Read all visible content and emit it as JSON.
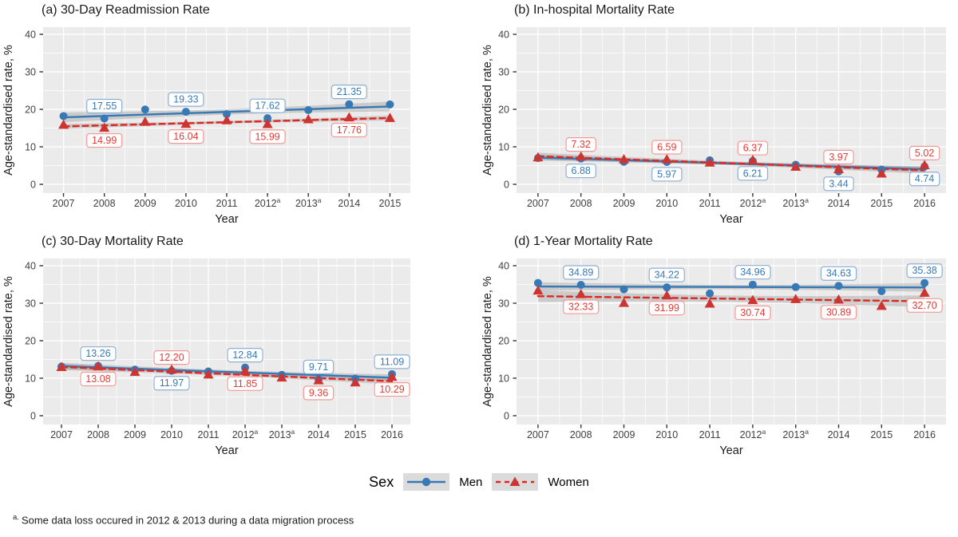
{
  "figure": {
    "xlabel": "Year",
    "ylabel": "Age-standardised rate, %",
    "legend": {
      "title": "Sex",
      "items": [
        {
          "key": "men",
          "label": "Men",
          "marker": "circle",
          "line": "solid"
        },
        {
          "key": "women",
          "label": "Women",
          "marker": "triangle",
          "line": "dashed"
        }
      ]
    },
    "footnote": {
      "sup": "a.",
      "text": "Some data loss occured in 2012 & 2013 during a data migration process"
    }
  },
  "colors": {
    "men": "#3779B5",
    "women": "#E0261F",
    "women_marker": "#CC3531",
    "men_label_text": "#3779B5",
    "women_label_text": "#E23B35",
    "men_label_border": "#8FAFD1",
    "women_label_border": "#F09B97",
    "panel_bg": "#EBEBEB",
    "grid": "#FFFFFF",
    "band": "#7F7F7F",
    "band_opacity": "0.30",
    "tick_text": "#404040",
    "axis_title": "#1a1a1a",
    "tick_mark": "#333333",
    "legend_key_bg": "#DBDBDB",
    "label_box_bg": "#FFFFFF"
  },
  "chart_data": [
    {
      "id": "a",
      "type": "scatter",
      "title": "(a) 30-Day Readmission Rate",
      "xlabel": "Year",
      "ylabel": "Age-standardised rate, %",
      "ylim": [
        0,
        40
      ],
      "yticks": [
        0,
        10,
        20,
        30,
        40
      ],
      "x": [
        2007,
        2008,
        2009,
        2010,
        2011,
        2012,
        2013,
        2014,
        2015
      ],
      "x_superscript_years": [
        2012,
        2013
      ],
      "trend": "linear-with-95ci-band",
      "series": [
        {
          "name": "Men",
          "key": "men",
          "values": [
            18.2,
            17.55,
            19.95,
            19.33,
            18.7,
            17.62,
            19.8,
            21.35,
            21.3
          ]
        },
        {
          "name": "Women",
          "key": "women",
          "values": [
            15.8,
            14.99,
            16.6,
            16.04,
            17.0,
            15.99,
            17.25,
            17.76,
            17.6
          ]
        }
      ],
      "labels": [
        {
          "year": 2008,
          "series": "men",
          "text": "17.55",
          "placement": "above"
        },
        {
          "year": 2010,
          "series": "men",
          "text": "19.33",
          "placement": "above"
        },
        {
          "year": 2012,
          "series": "men",
          "text": "17.62",
          "placement": "above"
        },
        {
          "year": 2014,
          "series": "men",
          "text": "21.35",
          "placement": "above"
        },
        {
          "year": 2008,
          "series": "women",
          "text": "14.99",
          "placement": "below"
        },
        {
          "year": 2010,
          "series": "women",
          "text": "16.04",
          "placement": "below"
        },
        {
          "year": 2012,
          "series": "women",
          "text": "15.99",
          "placement": "below"
        },
        {
          "year": 2014,
          "series": "women",
          "text": "17.76",
          "placement": "below"
        }
      ]
    },
    {
      "id": "b",
      "type": "scatter",
      "title": "(b) In-hospital Mortality Rate",
      "xlabel": "Year",
      "ylabel": "Age-standardised rate, %",
      "ylim": [
        0,
        40
      ],
      "yticks": [
        0,
        10,
        20,
        30,
        40
      ],
      "x": [
        2007,
        2008,
        2009,
        2010,
        2011,
        2012,
        2013,
        2014,
        2015,
        2016
      ],
      "x_superscript_years": [
        2012,
        2013
      ],
      "trend": "linear-with-95ci-band",
      "series": [
        {
          "name": "Men",
          "key": "men",
          "values": [
            7.0,
            6.88,
            6.0,
            5.97,
            6.4,
            6.21,
            5.2,
            3.44,
            3.9,
            4.74
          ]
        },
        {
          "name": "Women",
          "key": "women",
          "values": [
            7.1,
            7.32,
            6.6,
            6.59,
            5.7,
            6.37,
            4.6,
            3.97,
            2.8,
            5.02
          ]
        }
      ],
      "labels": [
        {
          "year": 2008,
          "series": "women",
          "text": "7.32",
          "placement": "above"
        },
        {
          "year": 2010,
          "series": "women",
          "text": "6.59",
          "placement": "above"
        },
        {
          "year": 2012,
          "series": "women",
          "text": "6.37",
          "placement": "above"
        },
        {
          "year": 2014,
          "series": "women",
          "text": "3.97",
          "placement": "above"
        },
        {
          "year": 2016,
          "series": "women",
          "text": "5.02",
          "placement": "above"
        },
        {
          "year": 2008,
          "series": "men",
          "text": "6.88",
          "placement": "below"
        },
        {
          "year": 2010,
          "series": "men",
          "text": "5.97",
          "placement": "below"
        },
        {
          "year": 2012,
          "series": "men",
          "text": "6.21",
          "placement": "below"
        },
        {
          "year": 2014,
          "series": "men",
          "text": "3.44",
          "placement": "below"
        },
        {
          "year": 2016,
          "series": "men",
          "text": "4.74",
          "placement": "below"
        }
      ]
    },
    {
      "id": "c",
      "type": "scatter",
      "title": "(c) 30-Day Mortality Rate",
      "xlabel": "Year",
      "ylabel": "Age-standardised rate, %",
      "ylim": [
        0,
        40
      ],
      "yticks": [
        0,
        10,
        20,
        30,
        40
      ],
      "x": [
        2007,
        2008,
        2009,
        2010,
        2011,
        2012,
        2013,
        2014,
        2015,
        2016
      ],
      "x_superscript_years": [
        2012,
        2013
      ],
      "trend": "linear-with-95ci-band",
      "series": [
        {
          "name": "Men",
          "key": "men",
          "values": [
            13.1,
            13.26,
            12.3,
            11.97,
            11.8,
            12.84,
            10.9,
            9.71,
            9.9,
            11.09
          ]
        },
        {
          "name": "Women",
          "key": "women",
          "values": [
            12.9,
            13.08,
            11.6,
            12.2,
            10.9,
            11.85,
            10.1,
            9.36,
            8.8,
            10.29
          ]
        }
      ],
      "labels": [
        {
          "year": 2008,
          "series": "men",
          "text": "13.26",
          "placement": "above"
        },
        {
          "year": 2010,
          "series": "men",
          "text": "11.97",
          "placement": "below"
        },
        {
          "year": 2012,
          "series": "men",
          "text": "12.84",
          "placement": "above"
        },
        {
          "year": 2014,
          "series": "men",
          "text": "9.71",
          "placement": "above"
        },
        {
          "year": 2016,
          "series": "men",
          "text": "11.09",
          "placement": "above"
        },
        {
          "year": 2008,
          "series": "women",
          "text": "13.08",
          "placement": "below"
        },
        {
          "year": 2010,
          "series": "women",
          "text": "12.20",
          "placement": "above"
        },
        {
          "year": 2012,
          "series": "women",
          "text": "11.85",
          "placement": "below"
        },
        {
          "year": 2014,
          "series": "women",
          "text": "9.36",
          "placement": "below"
        },
        {
          "year": 2016,
          "series": "women",
          "text": "10.29",
          "placement": "below"
        }
      ]
    },
    {
      "id": "d",
      "type": "scatter",
      "title": "(d) 1-Year Mortality Rate",
      "xlabel": "Year",
      "ylabel": "Age-standardised rate, %",
      "ylim": [
        0,
        40
      ],
      "yticks": [
        0,
        10,
        20,
        30,
        40
      ],
      "x": [
        2007,
        2008,
        2009,
        2010,
        2011,
        2012,
        2013,
        2014,
        2015,
        2016
      ],
      "x_superscript_years": [
        2012,
        2013
      ],
      "trend": "linear-with-95ci-band",
      "series": [
        {
          "name": "Men",
          "key": "men",
          "values": [
            35.4,
            34.89,
            33.7,
            34.22,
            32.6,
            34.96,
            34.3,
            34.63,
            33.2,
            35.38
          ]
        },
        {
          "name": "Women",
          "key": "women",
          "values": [
            33.3,
            32.33,
            30.0,
            31.99,
            29.8,
            30.74,
            31.0,
            30.89,
            29.2,
            32.7
          ]
        }
      ],
      "labels": [
        {
          "year": 2008,
          "series": "men",
          "text": "34.89",
          "placement": "above"
        },
        {
          "year": 2010,
          "series": "men",
          "text": "34.22",
          "placement": "above"
        },
        {
          "year": 2012,
          "series": "men",
          "text": "34.96",
          "placement": "above"
        },
        {
          "year": 2014,
          "series": "men",
          "text": "34.63",
          "placement": "above"
        },
        {
          "year": 2016,
          "series": "men",
          "text": "35.38",
          "placement": "above"
        },
        {
          "year": 2008,
          "series": "women",
          "text": "32.33",
          "placement": "below"
        },
        {
          "year": 2010,
          "series": "women",
          "text": "31.99",
          "placement": "below"
        },
        {
          "year": 2012,
          "series": "women",
          "text": "30.74",
          "placement": "below"
        },
        {
          "year": 2014,
          "series": "women",
          "text": "30.89",
          "placement": "below"
        },
        {
          "year": 2016,
          "series": "women",
          "text": "32.70",
          "placement": "below"
        }
      ]
    }
  ]
}
